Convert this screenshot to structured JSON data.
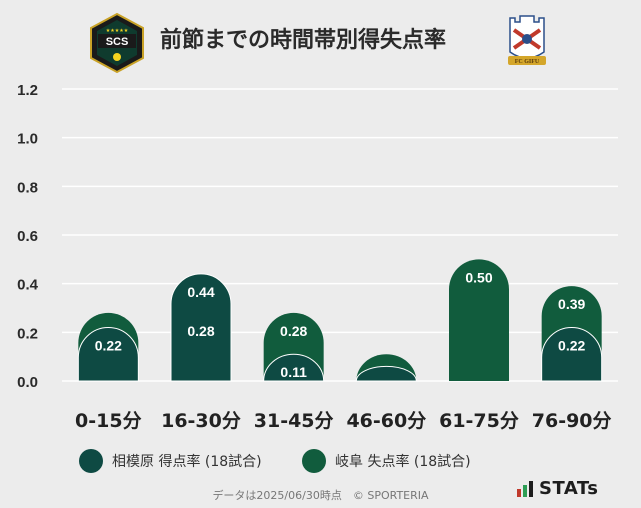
{
  "header": {
    "title": "前節までの時間帯別得失点率",
    "home_badge_text": "SCS",
    "away_badge_text": "FC GIFU"
  },
  "legend": [
    {
      "label": "相模原 得点率 (18試合)",
      "color": "#0e4a43"
    },
    {
      "label": "岐阜 失点率 (18試合)",
      "color": "#115c3d"
    }
  ],
  "footer": {
    "note": "データは2025/06/30時点　© SPORTERIA",
    "brand": "STATs",
    "brand_bar_colors": [
      "#c0392b",
      "#2e9e55",
      "#1d1d1d"
    ]
  },
  "colors": {
    "background": "#ececec",
    "grid": "#ffffff",
    "home": "#0e4a43",
    "away": "#115c3d"
  },
  "chart_data": {
    "type": "bar",
    "categories": [
      "0-15分",
      "16-30分",
      "31-45分",
      "46-60分",
      "61-75分",
      "76-90分"
    ],
    "series": [
      {
        "name": "相模原 得点率 (18試合)",
        "values": [
          0.22,
          0.44,
          0.11,
          0.06,
          0.0,
          0.22
        ],
        "labels": [
          "0.22",
          "0.44",
          "0.11",
          "",
          "",
          "0.22"
        ]
      },
      {
        "name": "岐阜 失点率 (18試合)",
        "values": [
          0.28,
          0.28,
          0.28,
          0.11,
          0.5,
          0.39
        ],
        "labels": [
          "",
          "0.28",
          "0.28",
          "",
          "0.50",
          "0.39"
        ]
      }
    ],
    "overlapping": true,
    "yticks": [
      "0.0",
      "0.2",
      "0.4",
      "0.6",
      "0.8",
      "1.0",
      "1.2"
    ],
    "ylim": [
      0,
      1.2
    ],
    "grid": true,
    "legend_position": "bottom"
  }
}
